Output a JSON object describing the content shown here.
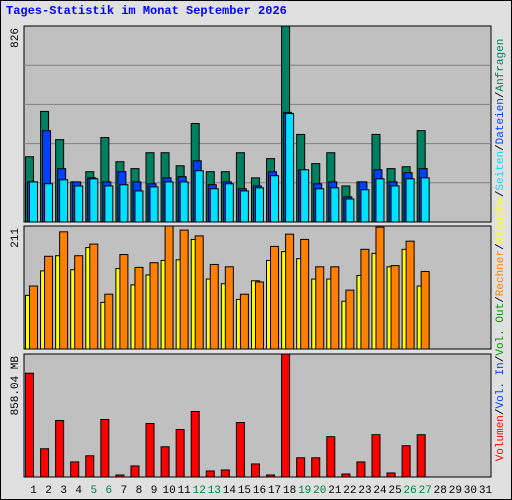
{
  "title": "Tages-Statistik im Monat September 2026",
  "legend_separator": "/",
  "chart_data": [
    {
      "type": "bar",
      "ylim": [
        0,
        826
      ],
      "yticks": [
        826
      ],
      "gridlines": [
        165.2,
        330.4,
        495.6,
        660.8
      ],
      "series": [
        {
          "name": "Anfragen",
          "color": "#008060",
          "values": [
            275,
            466,
            347,
            169,
            212,
            356,
            254,
            225,
            292,
            292,
            237,
            415,
            212,
            212,
            292,
            186,
            267,
            826,
            369,
            246,
            292,
            152,
            169,
            369,
            225,
            233,
            385,
            null,
            null,
            null,
            null
          ]
        },
        {
          "name": "Dateien",
          "color": "#0040ff",
          "values": [
            169,
            385,
            225,
            169,
            186,
            169,
            212,
            169,
            161,
            186,
            191,
            258,
            157,
            169,
            140,
            152,
            212,
            462,
            220,
            161,
            169,
            106,
            169,
            220,
            169,
            208,
            225,
            null,
            null,
            null,
            null
          ]
        },
        {
          "name": "Seiten",
          "color": "#00e0ff",
          "values": [
            169,
            161,
            178,
            152,
            182,
            152,
            157,
            131,
            148,
            169,
            169,
            216,
            140,
            161,
            131,
            144,
            195,
            457,
            220,
            140,
            144,
            97,
            136,
            182,
            152,
            182,
            186,
            null,
            null,
            null,
            null
          ]
        }
      ]
    },
    {
      "type": "bar",
      "ylim": [
        0,
        211
      ],
      "yticks": [
        211
      ],
      "series": [
        {
          "name": "Besuche",
          "color": "#ffff00",
          "values": [
            92,
            134,
            160,
            136,
            174,
            80,
            138,
            110,
            127,
            152,
            153,
            188,
            120,
            112,
            85,
            117,
            152,
            167,
            155,
            120,
            120,
            82,
            126,
            164,
            141,
            171,
            108,
            null,
            null,
            null,
            null
          ]
        },
        {
          "name": "Rechner",
          "color": "#ff8000",
          "values": [
            108,
            159,
            201,
            160,
            180,
            94,
            162,
            140,
            148,
            211,
            204,
            194,
            145,
            141,
            94,
            115,
            176,
            197,
            188,
            141,
            141,
            101,
            171,
            209,
            143,
            185,
            133,
            null,
            null,
            null,
            null
          ]
        }
      ]
    },
    {
      "type": "bar",
      "ylim": [
        0,
        858.04
      ],
      "yticks": [
        {
          "value": 858.04,
          "label": "858.04 MB"
        }
      ],
      "categories": [
        "1",
        "2",
        "3",
        "4",
        "5",
        "6",
        "7",
        "8",
        "9",
        "10",
        "11",
        "12",
        "13",
        "14",
        "15",
        "16",
        "17",
        "18",
        "19",
        "20",
        "21",
        "22",
        "23",
        "24",
        "25",
        "26",
        "27",
        "28",
        "29",
        "30",
        "31"
      ],
      "category_colors": [
        "#000000",
        "#000000",
        "#000000",
        "#000000",
        "#008040",
        "#008040",
        "#000000",
        "#000000",
        "#000000",
        "#000000",
        "#000000",
        "#008040",
        "#008040",
        "#000000",
        "#000000",
        "#000000",
        "#000000",
        "#000000",
        "#008040",
        "#008040",
        "#000000",
        "#000000",
        "#000000",
        "#000000",
        "#000000",
        "#008040",
        "#008040",
        "#000000",
        "#000000",
        "#000000",
        "#000000"
      ],
      "series": [
        {
          "name": "Volumen",
          "color": "#ff0000",
          "values": [
            724,
            197,
            394,
            105,
            148,
            401,
            14,
            77,
            373,
            211,
            331,
            457,
            42,
            49,
            380,
            91,
            14,
            858.04,
            134,
            134,
            281,
            21,
            105,
            295,
            28,
            218,
            295,
            null,
            null,
            null,
            null
          ]
        },
        {
          "name": "Vol. In",
          "color": "#0040ff",
          "values": [
            0,
            0,
            0,
            0,
            0,
            0,
            0,
            0,
            0,
            0,
            0,
            0,
            0,
            0,
            0,
            0,
            0,
            0,
            0,
            0,
            0,
            0,
            0,
            0,
            0,
            0,
            0,
            null,
            null,
            null,
            null
          ]
        },
        {
          "name": "Vol. Out",
          "color": "#00a000",
          "values": [
            0,
            0,
            0,
            0,
            0,
            0,
            0,
            0,
            0,
            0,
            0,
            0,
            0,
            0,
            0,
            0,
            0,
            0,
            0,
            0,
            0,
            0,
            0,
            0,
            0,
            0,
            0,
            null,
            null,
            null,
            null
          ]
        }
      ]
    }
  ]
}
